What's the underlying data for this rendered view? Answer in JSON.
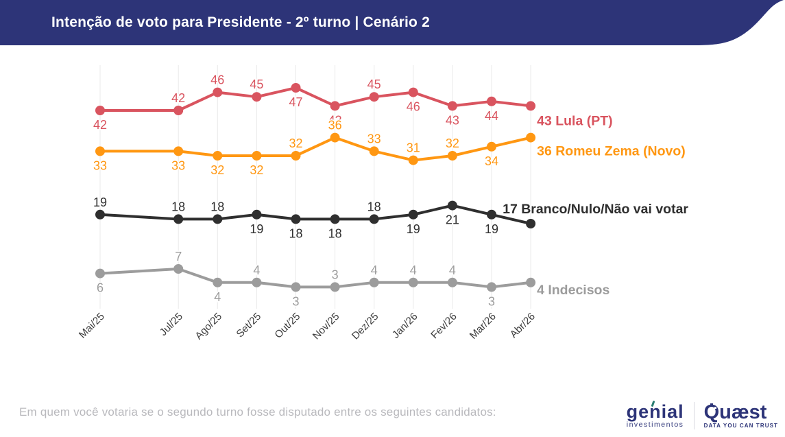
{
  "header": {
    "title": "Intenção de voto para Presidente - 2º turno | Cenário 2",
    "bg_color": "#2d3478",
    "text_color": "#ffffff"
  },
  "footer": {
    "question": "Em quem você votaria se o segundo turno fosse disputado entre os seguintes candidatos:",
    "logos": {
      "genial": {
        "name": "genial",
        "subtitle": "investimentos",
        "color": "#2d3478"
      },
      "quaest": {
        "name": "Quæst",
        "tagline": "DATA YOU CAN TRUST",
        "color": "#2d3478"
      }
    }
  },
  "chart_data": {
    "type": "line",
    "title": "Intenção de voto para Presidente - 2º turno | Cenário 2",
    "categories": [
      "Mai/25",
      "Jul/25",
      "Ago/25",
      "Set/25",
      "Out/25",
      "Nov/25",
      "Dez/25",
      "Jan/26",
      "Fev/26",
      "Mar/26",
      "Abr/26"
    ],
    "x_slots": [
      0,
      2,
      3,
      4,
      5,
      6,
      7,
      8,
      9,
      10,
      11
    ],
    "ylim": [
      0,
      50
    ],
    "grid": "vertical-at-points",
    "legend_position": "right-of-last-point",
    "axis_label_color": "#3b3b3b",
    "grid_color": "#e9e9e9",
    "series": [
      {
        "name": "Lula (PT)",
        "color": "#d9545f",
        "end_label": "43 Lula (PT)",
        "values": [
          42,
          42,
          46,
          45,
          47,
          43,
          45,
          46,
          43,
          44,
          43
        ],
        "label_side": [
          "below",
          "above",
          "above",
          "above",
          "below",
          "below",
          "above",
          "below",
          "below",
          "below",
          null
        ]
      },
      {
        "name": "Romeu Zema (Novo)",
        "color": "#ff9712",
        "end_label": "36 Romeu Zema (Novo)",
        "values": [
          33,
          33,
          32,
          32,
          32,
          36,
          33,
          31,
          32,
          34,
          36
        ],
        "label_side": [
          "below",
          "below",
          "below",
          "below",
          "above",
          "above",
          "above",
          "above",
          "above",
          "below",
          null
        ]
      },
      {
        "name": "Branco/Nulo/Não vai votar",
        "color": "#2f2f2f",
        "end_label": "17 Branco/Nulo/Não vai votar",
        "values": [
          19,
          18,
          18,
          19,
          18,
          18,
          18,
          19,
          21,
          19,
          17
        ],
        "label_side": [
          "above",
          "above",
          "above",
          "below",
          "below",
          "below",
          "above",
          "below",
          "below",
          "below",
          null
        ]
      },
      {
        "name": "Indecisos",
        "color": "#9c9c9c",
        "end_label": "4 Indecisos",
        "values": [
          6,
          7,
          4,
          4,
          3,
          3,
          4,
          4,
          4,
          3,
          4
        ],
        "label_side": [
          "below",
          "above",
          "below",
          "above",
          "below",
          "above",
          "above",
          "above",
          "above",
          "below",
          null
        ]
      }
    ]
  }
}
